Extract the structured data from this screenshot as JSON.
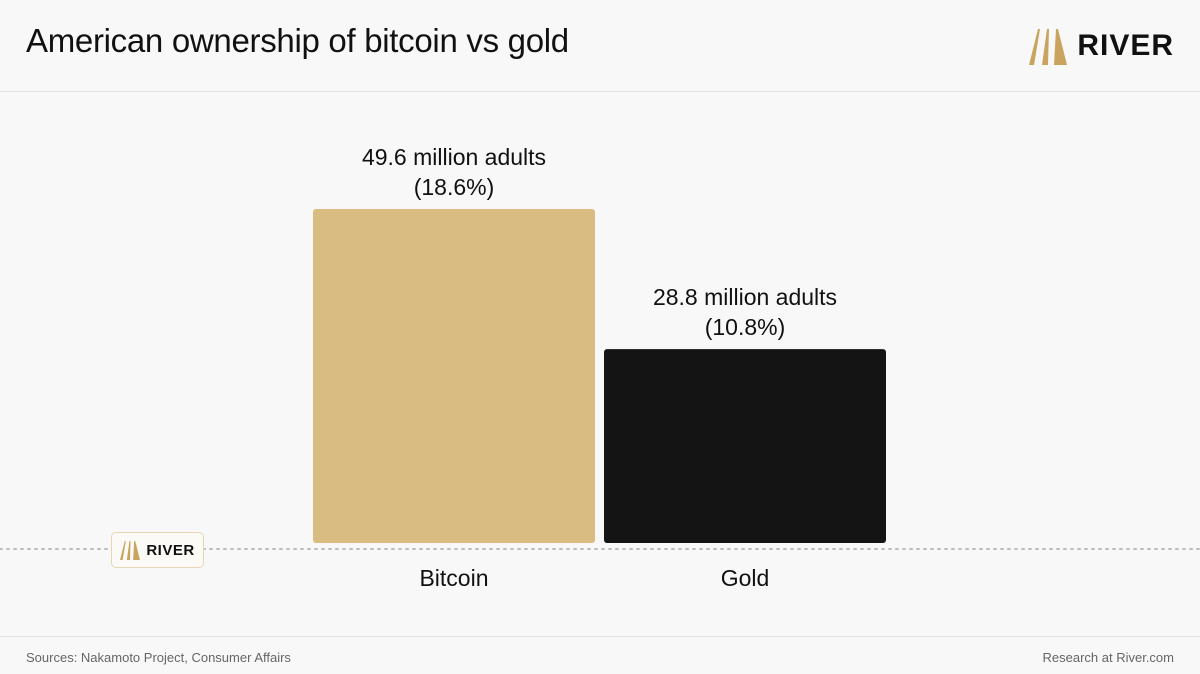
{
  "header": {
    "title": "American ownership of bitcoin vs gold",
    "brand": "RIVER"
  },
  "badge": {
    "brand": "RIVER"
  },
  "footer": {
    "sources": "Sources: Nakamoto Project, Consumer Affairs",
    "research": "Research at River.com"
  },
  "colors": {
    "bitcoin": "#d9bc82",
    "gold": "#141414",
    "logo_gold": "#c9a45f",
    "baseline": "#bdbdbd"
  },
  "icons": {
    "logo": "river-logo-icon"
  },
  "chart_data": {
    "type": "bar",
    "categories": [
      "Bitcoin",
      "Gold"
    ],
    "values": [
      18.6,
      10.8
    ],
    "value_labels": [
      [
        "49.6 million adults",
        "(18.6%)"
      ],
      [
        "28.8 million adults",
        "(10.8%)"
      ]
    ],
    "units": "% of American adults",
    "ylim": [
      0,
      22
    ],
    "grid": false,
    "legend": "none",
    "baseline_style": "dotted"
  }
}
